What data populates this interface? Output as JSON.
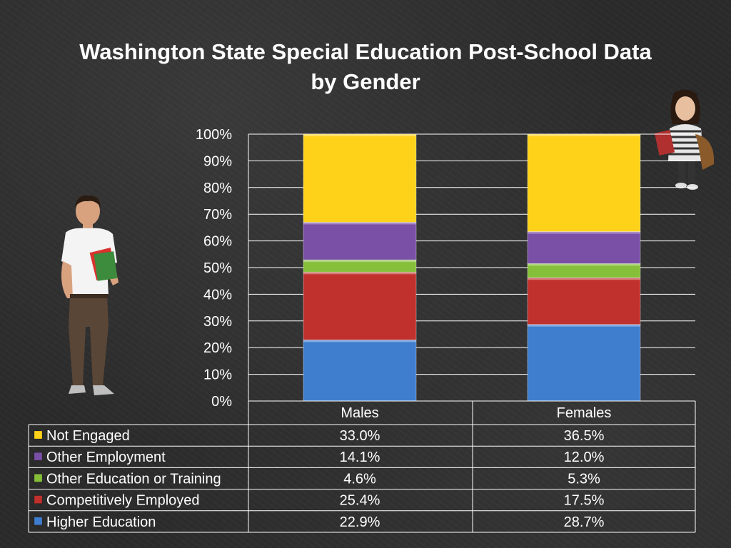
{
  "title_line1": "Washington State Special Education Post-School Data",
  "title_line2": "by Gender",
  "chart_data": {
    "type": "bar",
    "stacked": true,
    "title": "Washington State Special Education Post-School Data by Gender",
    "categories": [
      "Males",
      "Females"
    ],
    "ylim": [
      0,
      100
    ],
    "y_ticks": [
      "0%",
      "10%",
      "20%",
      "30%",
      "40%",
      "50%",
      "60%",
      "70%",
      "80%",
      "90%",
      "100%"
    ],
    "grid": true,
    "series": [
      {
        "name": "Higher Education",
        "values": [
          22.9,
          28.7
        ],
        "labels": [
          "22.9%",
          "28.7%"
        ],
        "color": "#3f7ecf"
      },
      {
        "name": "Competitively Employed",
        "values": [
          25.4,
          17.5
        ],
        "labels": [
          "25.4%",
          "17.5%"
        ],
        "color": "#c0312d"
      },
      {
        "name": "Other Education or Training",
        "values": [
          4.6,
          5.3
        ],
        "labels": [
          "4.6%",
          "5.3%"
        ],
        "color": "#86bf3a"
      },
      {
        "name": "Other Employment",
        "values": [
          14.1,
          12.0
        ],
        "labels": [
          "14.1%",
          "12.0%"
        ],
        "color": "#7a4fa6"
      },
      {
        "name": "Not Engaged",
        "values": [
          33.0,
          36.5
        ],
        "labels": [
          "33.0%",
          "36.5%"
        ],
        "color": "#ffd21a"
      }
    ],
    "legend": "data-table-below"
  }
}
